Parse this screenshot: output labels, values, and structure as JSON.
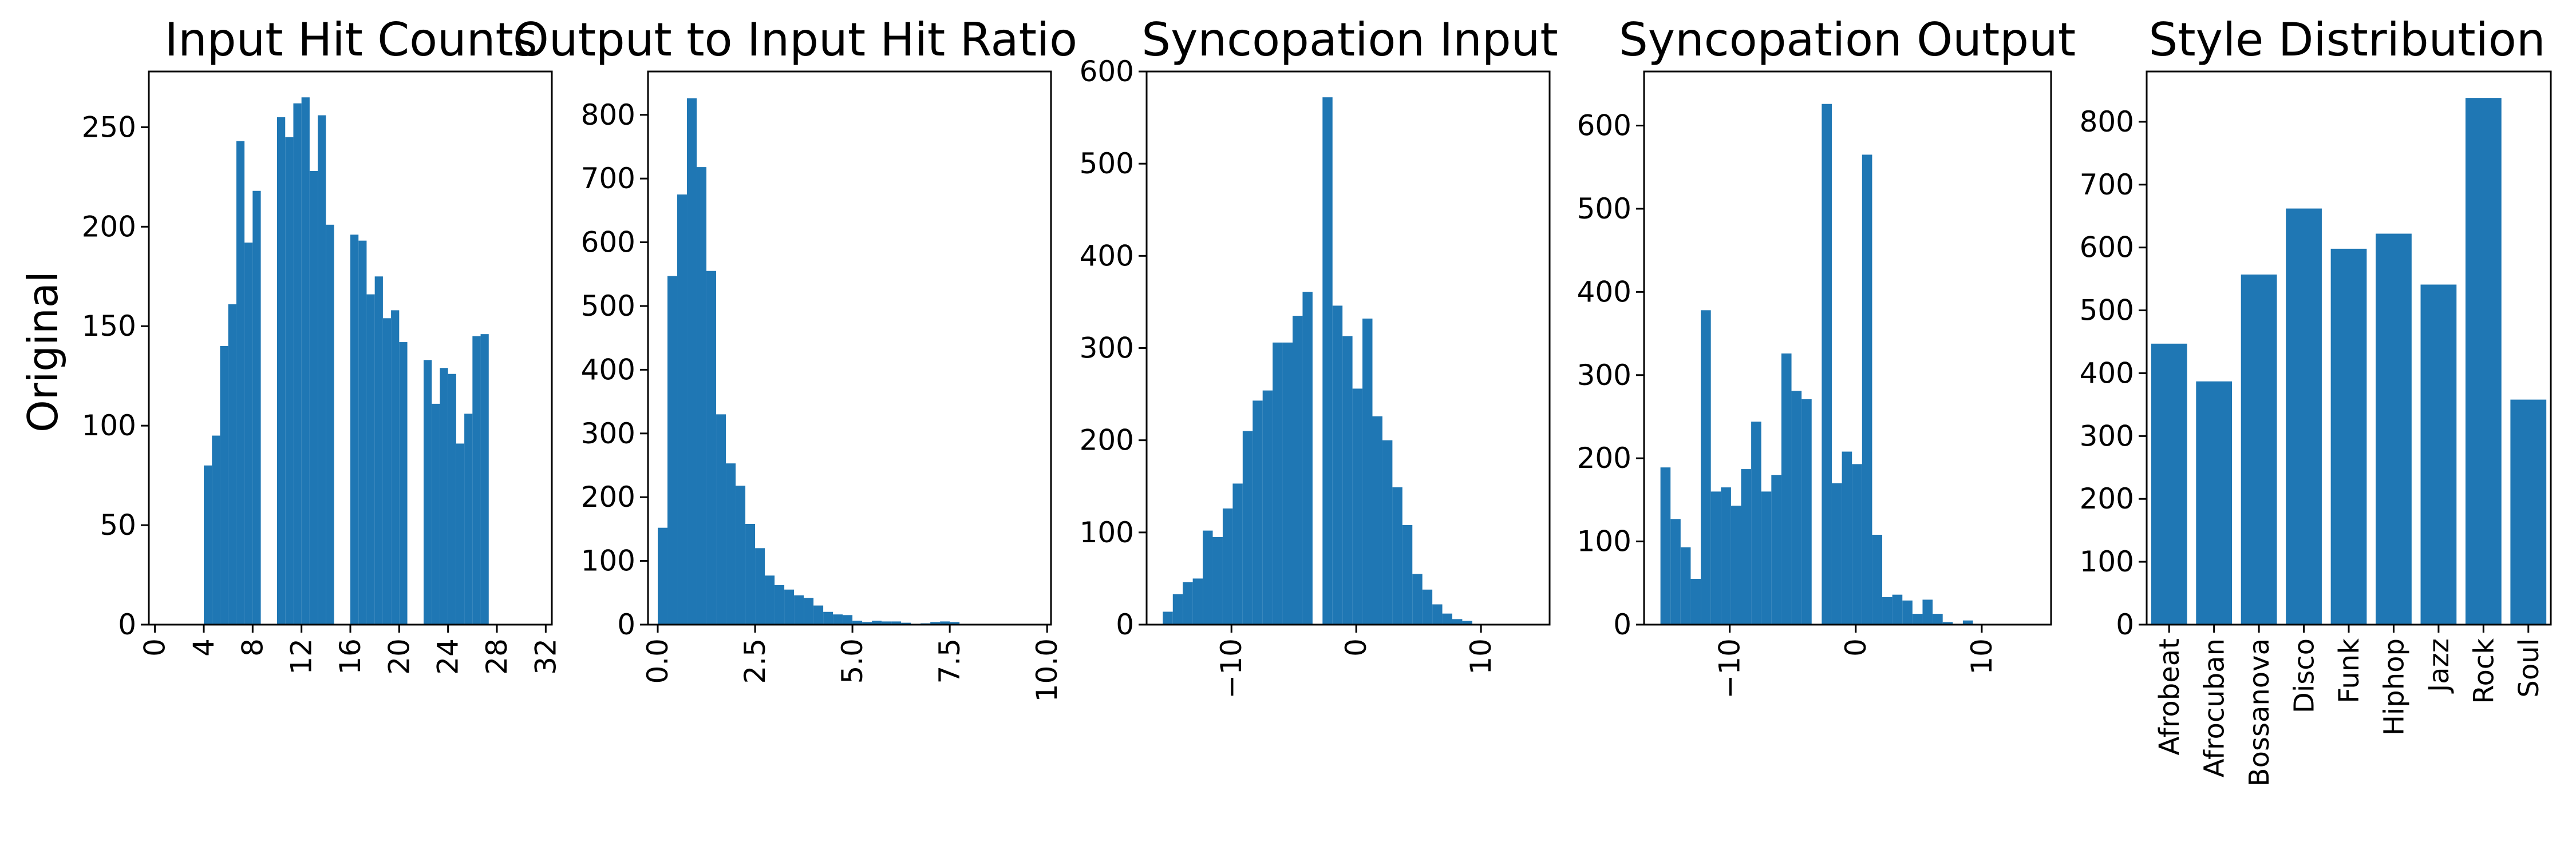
{
  "figure": {
    "row_label": "Original"
  },
  "colors": {
    "bar": "#1f77b4",
    "axis": "#000000",
    "background": "#ffffff"
  },
  "chart_data": [
    {
      "type": "bar",
      "title": "Input Hit Counts",
      "xlim": [
        -0.5,
        32.5
      ],
      "ylim": [
        0,
        278
      ],
      "xticks": [
        0,
        4,
        8,
        12,
        16,
        20,
        24,
        28,
        32
      ],
      "xtick_rotation": 90,
      "yticks": [
        0,
        50,
        100,
        150,
        200,
        250
      ],
      "grid": false,
      "bins": [
        {
          "x0": 4,
          "x1": 4.667,
          "y": 80
        },
        {
          "x0": 4.667,
          "x1": 5.333,
          "y": 95
        },
        {
          "x0": 5.333,
          "x1": 6,
          "y": 140
        },
        {
          "x0": 6,
          "x1": 6.667,
          "y": 161
        },
        {
          "x0": 6.667,
          "x1": 7.333,
          "y": 243
        },
        {
          "x0": 7.333,
          "x1": 8,
          "y": 192
        },
        {
          "x0": 8,
          "x1": 8.667,
          "y": 218
        },
        {
          "x0": 10,
          "x1": 10.667,
          "y": 255
        },
        {
          "x0": 10.667,
          "x1": 11.333,
          "y": 245
        },
        {
          "x0": 11.333,
          "x1": 12,
          "y": 262
        },
        {
          "x0": 12,
          "x1": 12.667,
          "y": 265
        },
        {
          "x0": 12.667,
          "x1": 13.333,
          "y": 228
        },
        {
          "x0": 13.333,
          "x1": 14,
          "y": 256
        },
        {
          "x0": 14,
          "x1": 14.667,
          "y": 201
        },
        {
          "x0": 16,
          "x1": 16.667,
          "y": 196
        },
        {
          "x0": 16.667,
          "x1": 17.333,
          "y": 193
        },
        {
          "x0": 17.333,
          "x1": 18,
          "y": 166
        },
        {
          "x0": 18,
          "x1": 18.667,
          "y": 175
        },
        {
          "x0": 18.667,
          "x1": 19.333,
          "y": 154
        },
        {
          "x0": 19.333,
          "x1": 20,
          "y": 158
        },
        {
          "x0": 20,
          "x1": 20.667,
          "y": 142
        },
        {
          "x0": 22,
          "x1": 22.667,
          "y": 133
        },
        {
          "x0": 22.667,
          "x1": 23.333,
          "y": 111
        },
        {
          "x0": 23.333,
          "x1": 24,
          "y": 129
        },
        {
          "x0": 24,
          "x1": 24.667,
          "y": 126
        },
        {
          "x0": 24.667,
          "x1": 25.333,
          "y": 91
        },
        {
          "x0": 25.333,
          "x1": 26,
          "y": 106
        },
        {
          "x0": 26,
          "x1": 26.667,
          "y": 145
        },
        {
          "x0": 26.667,
          "x1": 27.333,
          "y": 146
        }
      ]
    },
    {
      "type": "bar",
      "title": "Output to Input Hit Ratio",
      "xlim": [
        -0.25,
        10.1
      ],
      "ylim": [
        0,
        868
      ],
      "xticks": [
        0.0,
        2.5,
        5.0,
        7.5,
        10.0
      ],
      "xtick_labels": [
        "0.0",
        "2.5",
        "5.0",
        "7.5",
        "10.0"
      ],
      "xtick_rotation": 90,
      "yticks": [
        0,
        100,
        200,
        300,
        400,
        500,
        600,
        700,
        800
      ],
      "grid": false,
      "bin_start": 0,
      "bin_width": 0.25,
      "values": [
        152,
        547,
        675,
        826,
        718,
        555,
        330,
        253,
        218,
        158,
        120,
        77,
        62,
        55,
        46,
        42,
        30,
        20,
        16,
        15,
        6,
        4,
        6,
        5,
        5,
        3,
        1,
        2,
        4,
        5,
        4
      ]
    },
    {
      "type": "bar",
      "title": "Syncopation Input",
      "xlim": [
        -16.8,
        15.5
      ],
      "ylim": [
        0,
        600
      ],
      "xticks": [
        -10,
        0,
        10
      ],
      "xtick_labels": [
        "−10",
        "0",
        "10"
      ],
      "xtick_rotation": 90,
      "yticks": [
        0,
        100,
        200,
        300,
        400,
        500,
        600
      ],
      "grid": false,
      "bin_start": -15.5,
      "bin_width": 0.8,
      "values": [
        14,
        33,
        46,
        50,
        102,
        95,
        126,
        153,
        210,
        243,
        254,
        306,
        306,
        335,
        361,
        0,
        572,
        346,
        313,
        256,
        332,
        226,
        200,
        149,
        108,
        55,
        38,
        22,
        12,
        6,
        4
      ]
    },
    {
      "type": "bar",
      "title": "Syncopation Output",
      "xlim": [
        -16.8,
        15.5
      ],
      "ylim": [
        0,
        665
      ],
      "xticks": [
        -10,
        0,
        10
      ],
      "xtick_labels": [
        "−10",
        "0",
        "10"
      ],
      "xtick_rotation": 90,
      "yticks": [
        0,
        100,
        200,
        300,
        400,
        500,
        600
      ],
      "grid": false,
      "bin_start": -15.5,
      "bin_width": 0.8,
      "values": [
        189,
        127,
        93,
        55,
        378,
        160,
        165,
        143,
        187,
        244,
        160,
        180,
        326,
        281,
        271,
        0,
        626,
        170,
        208,
        193,
        565,
        108,
        33,
        36,
        29,
        13,
        30,
        13,
        3,
        1,
        5
      ]
    },
    {
      "type": "bar",
      "title": "Style Distribution",
      "ylim": [
        0,
        880
      ],
      "yticks": [
        0,
        100,
        200,
        300,
        400,
        500,
        600,
        700,
        800
      ],
      "xtick_rotation": 90,
      "grid": false,
      "categories": [
        "Afrobeat",
        "Afrocuban",
        "Bossanova",
        "Disco",
        "Funk",
        "Hiphop",
        "Jazz",
        "Rock",
        "Soul"
      ],
      "values": [
        447,
        387,
        557,
        662,
        598,
        622,
        541,
        838,
        358
      ]
    }
  ]
}
